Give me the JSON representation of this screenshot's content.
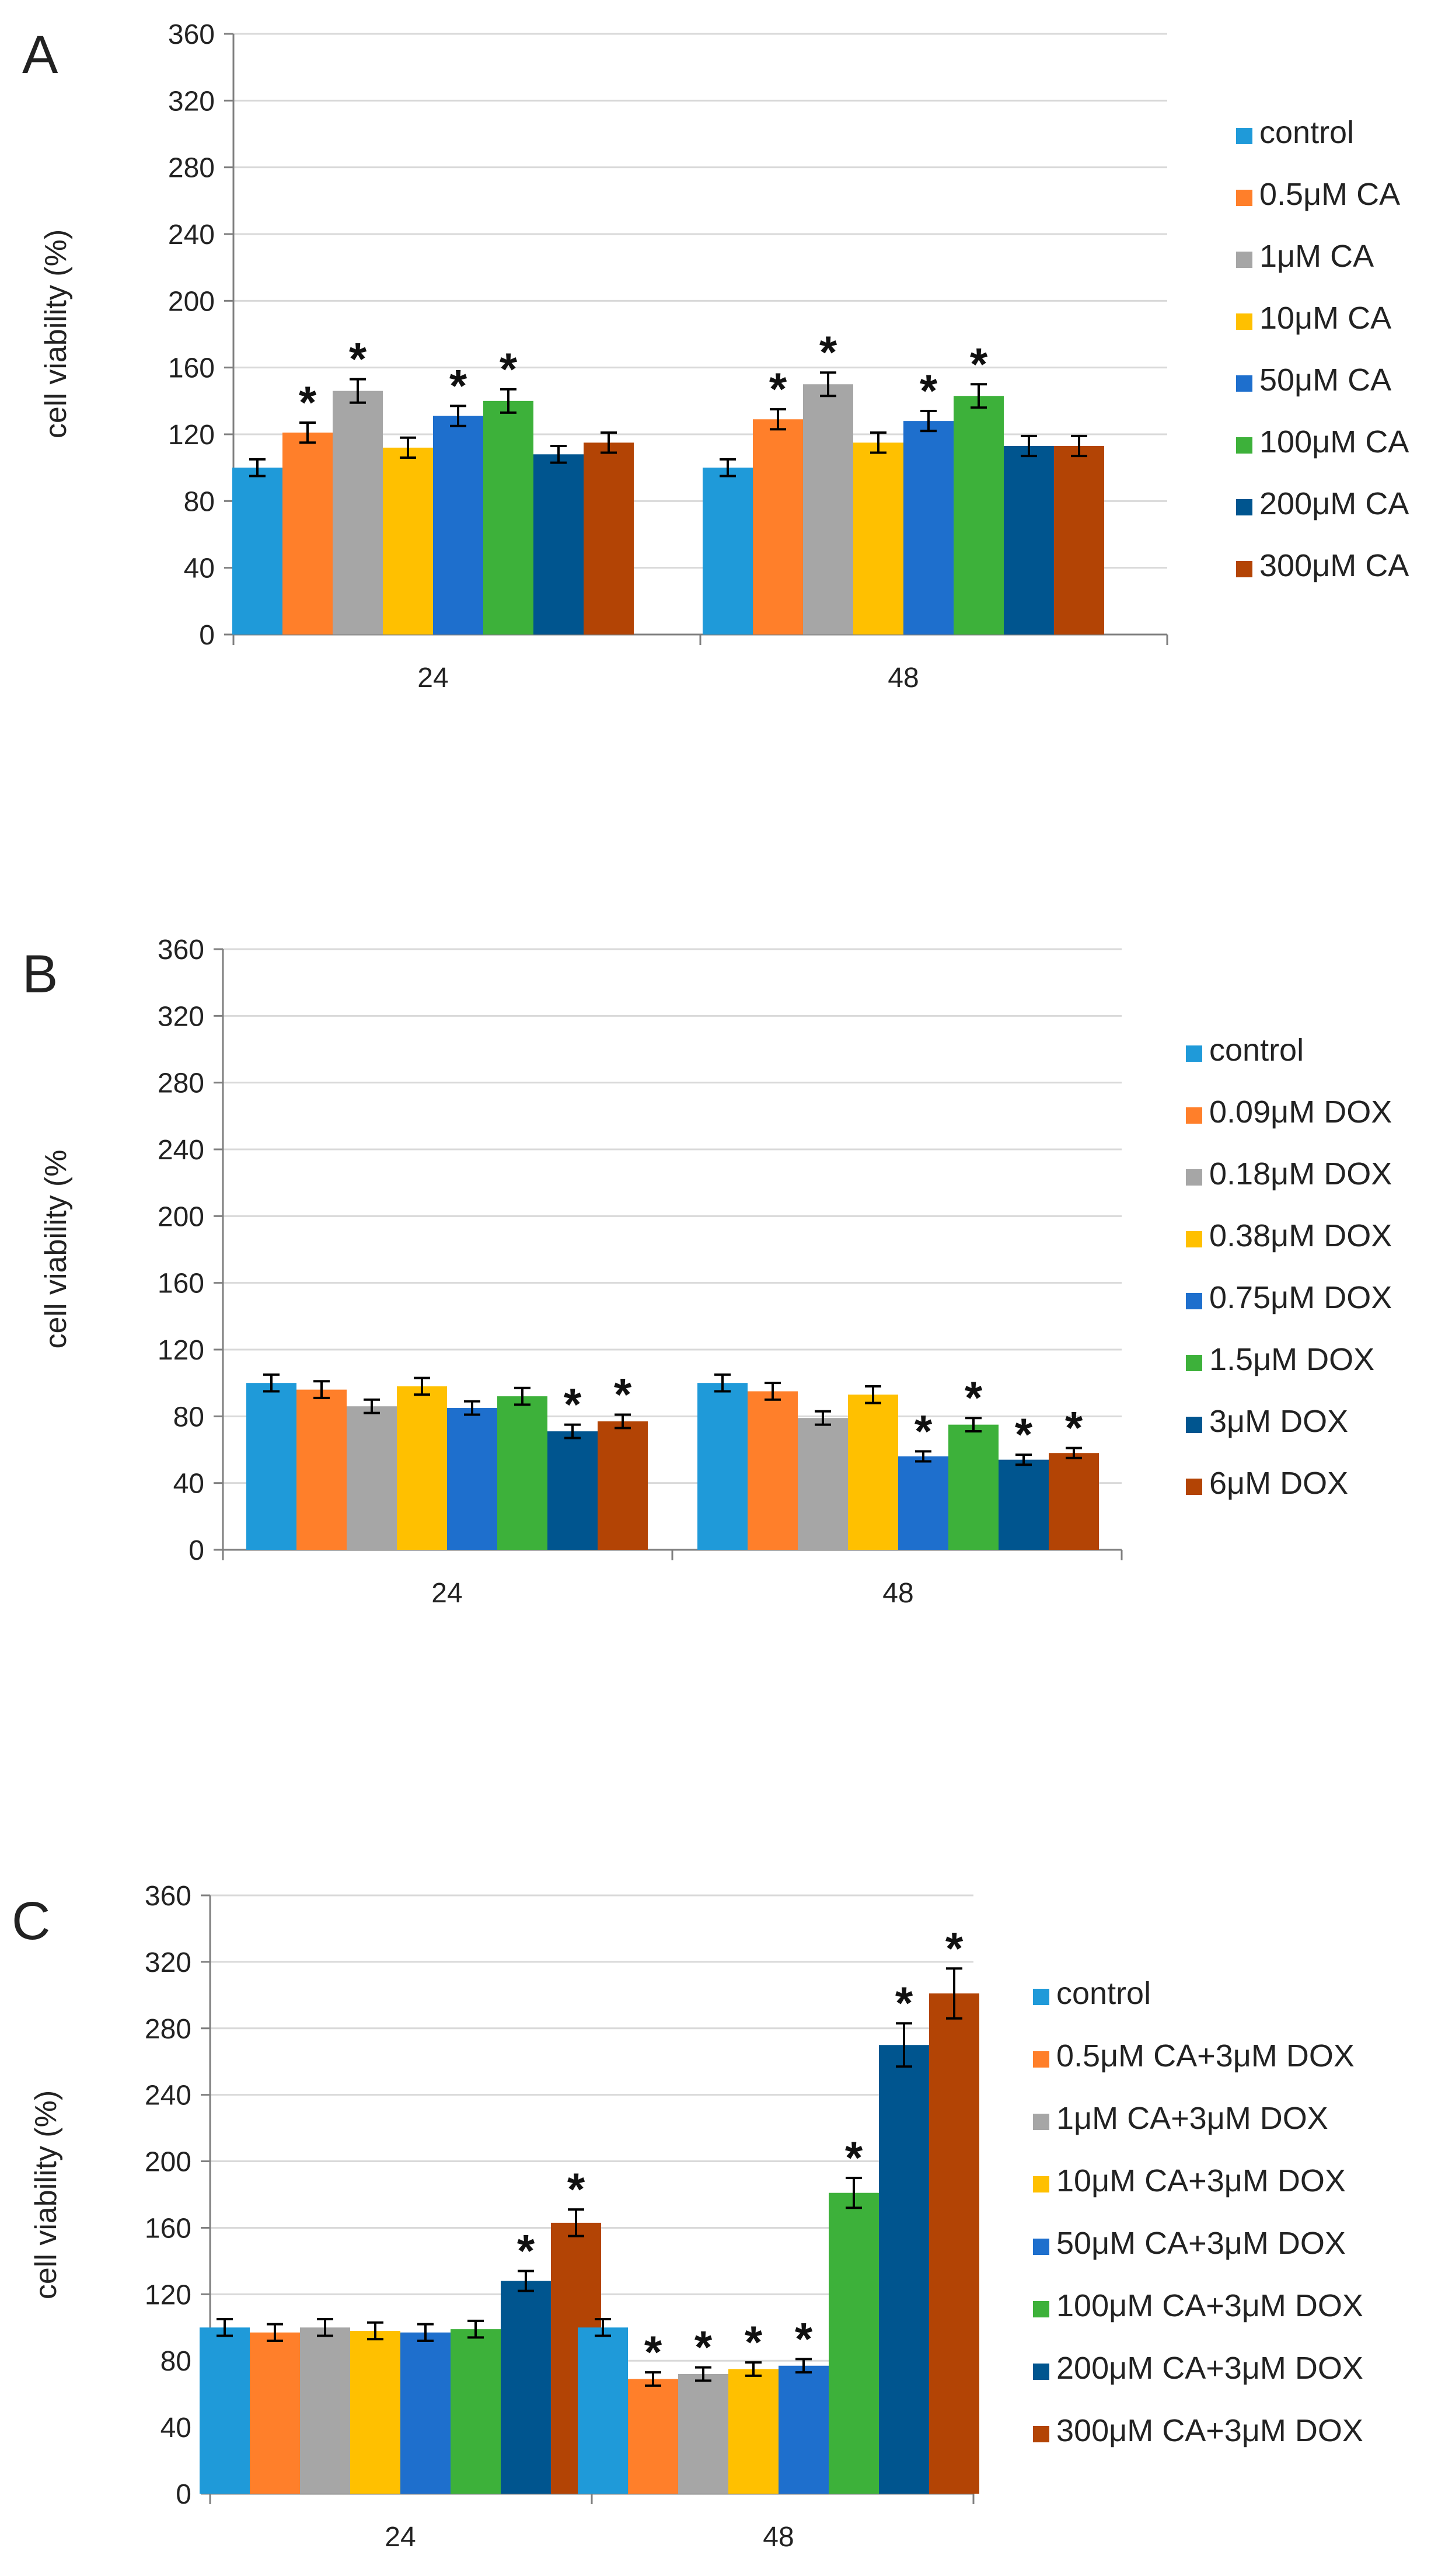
{
  "colors": [
    "#1f9ad9",
    "#ff7f2a",
    "#a6a6a6",
    "#ffc000",
    "#1e6fcd",
    "#3db13a",
    "#00558f",
    "#b34405"
  ],
  "chart_data": [
    {
      "panel": "A",
      "type": "bar",
      "ylabel": "cell viability (%)",
      "ylim": [
        0,
        360
      ],
      "yticks": [
        "0",
        "40",
        "80",
        "120",
        "160",
        "200",
        "240",
        "280",
        "320",
        "360"
      ],
      "grid": true,
      "legend_position": "right",
      "categories": [
        "24",
        "48"
      ],
      "series": [
        {
          "name": "control",
          "values": [
            100,
            100
          ],
          "errors": [
            5,
            5
          ],
          "sig": [
            false,
            false
          ]
        },
        {
          "name": "0.5μM CA",
          "values": [
            121,
            129
          ],
          "errors": [
            6,
            6
          ],
          "sig": [
            true,
            true
          ]
        },
        {
          "name": "1μM CA",
          "values": [
            146,
            150
          ],
          "errors": [
            7,
            7
          ],
          "sig": [
            true,
            true
          ]
        },
        {
          "name": "10μM CA",
          "values": [
            112,
            115
          ],
          "errors": [
            6,
            6
          ],
          "sig": [
            false,
            false
          ]
        },
        {
          "name": "50μM CA",
          "values": [
            131,
            128
          ],
          "errors": [
            6,
            6
          ],
          "sig": [
            true,
            true
          ]
        },
        {
          "name": "100μM CA",
          "values": [
            140,
            143
          ],
          "errors": [
            7,
            7
          ],
          "sig": [
            true,
            true
          ]
        },
        {
          "name": "200μM CA",
          "values": [
            108,
            113
          ],
          "errors": [
            5,
            6
          ],
          "sig": [
            false,
            false
          ]
        },
        {
          "name": "300μM CA",
          "values": [
            115,
            113
          ],
          "errors": [
            6,
            6
          ],
          "sig": [
            false,
            false
          ]
        }
      ]
    },
    {
      "panel": "B",
      "type": "bar",
      "ylabel": "cell viability (%",
      "ylim": [
        0,
        360
      ],
      "yticks": [
        "0",
        "40",
        "80",
        "120",
        "160",
        "200",
        "240",
        "280",
        "320",
        "360"
      ],
      "grid": true,
      "legend_position": "right",
      "categories": [
        "24",
        "48"
      ],
      "series": [
        {
          "name": "control",
          "values": [
            100,
            100
          ],
          "errors": [
            5,
            5
          ],
          "sig": [
            false,
            false
          ]
        },
        {
          "name": "0.09μM DOX",
          "values": [
            96,
            95
          ],
          "errors": [
            5,
            5
          ],
          "sig": [
            false,
            false
          ]
        },
        {
          "name": "0.18μM DOX",
          "values": [
            86,
            79
          ],
          "errors": [
            4,
            4
          ],
          "sig": [
            false,
            false
          ]
        },
        {
          "name": "0.38μM DOX",
          "values": [
            98,
            93
          ],
          "errors": [
            5,
            5
          ],
          "sig": [
            false,
            false
          ]
        },
        {
          "name": "0.75μM DOX",
          "values": [
            85,
            56
          ],
          "errors": [
            4,
            3
          ],
          "sig": [
            false,
            true
          ]
        },
        {
          "name": "1.5μM DOX",
          "values": [
            92,
            75
          ],
          "errors": [
            5,
            4
          ],
          "sig": [
            false,
            true
          ]
        },
        {
          "name": "3μM DOX",
          "values": [
            71,
            54
          ],
          "errors": [
            4,
            3
          ],
          "sig": [
            true,
            true
          ]
        },
        {
          "name": "6μM DOX",
          "values": [
            77,
            58
          ],
          "errors": [
            4,
            3
          ],
          "sig": [
            true,
            true
          ]
        }
      ]
    },
    {
      "panel": "C",
      "type": "bar",
      "ylabel": "cell viability (%)",
      "ylim": [
        0,
        360
      ],
      "yticks": [
        "0",
        "40",
        "80",
        "120",
        "160",
        "200",
        "240",
        "280",
        "320",
        "360"
      ],
      "grid": true,
      "legend_position": "right",
      "categories": [
        "24",
        "48"
      ],
      "series": [
        {
          "name": "control",
          "values": [
            100,
            100
          ],
          "errors": [
            5,
            5
          ],
          "sig": [
            false,
            false
          ]
        },
        {
          "name": "0.5μM CA+3μM DOX",
          "values": [
            97,
            69
          ],
          "errors": [
            5,
            4
          ],
          "sig": [
            false,
            true
          ]
        },
        {
          "name": "1μM CA+3μM DOX",
          "values": [
            100,
            72
          ],
          "errors": [
            5,
            4
          ],
          "sig": [
            false,
            true
          ]
        },
        {
          "name": "10μM CA+3μM DOX",
          "values": [
            98,
            75
          ],
          "errors": [
            5,
            4
          ],
          "sig": [
            false,
            true
          ]
        },
        {
          "name": "50μM CA+3μM DOX",
          "values": [
            97,
            77
          ],
          "errors": [
            5,
            4
          ],
          "sig": [
            false,
            true
          ]
        },
        {
          "name": "100μM CA+3μM DOX",
          "values": [
            99,
            181
          ],
          "errors": [
            5,
            9
          ],
          "sig": [
            false,
            true
          ]
        },
        {
          "name": "200μM CA+3μM DOX",
          "values": [
            128,
            270
          ],
          "errors": [
            6,
            13
          ],
          "sig": [
            true,
            true
          ]
        },
        {
          "name": "300μM CA+3μM DOX",
          "values": [
            163,
            301
          ],
          "errors": [
            8,
            15
          ],
          "sig": [
            true,
            true
          ]
        }
      ]
    }
  ]
}
